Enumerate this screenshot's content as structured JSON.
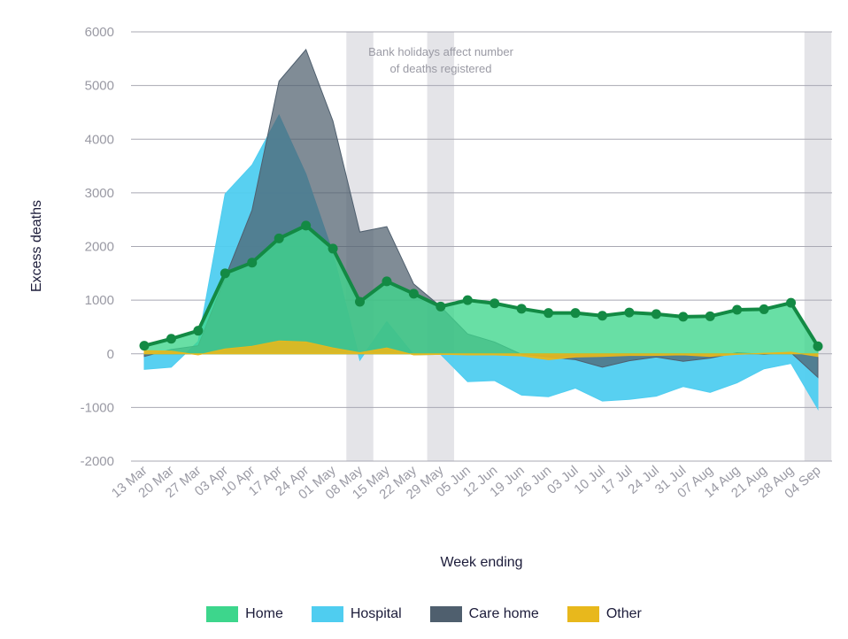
{
  "chart_data": {
    "type": "area",
    "xlabel": "Week ending",
    "ylabel": "Excess deaths",
    "ylim": [
      -2000,
      6000
    ],
    "yticks": [
      6000,
      5000,
      4000,
      3000,
      2000,
      1000,
      0,
      -1000,
      -2000
    ],
    "categories": [
      "13 Mar",
      "20 Mar",
      "27 Mar",
      "03 Apr",
      "10 Apr",
      "17 Apr",
      "24 Apr",
      "01 May",
      "08 May",
      "15 May",
      "22 May",
      "29 May",
      "05 Jun",
      "12 Jun",
      "19 Jun",
      "26 Jun",
      "03 Jul",
      "10 Jul",
      "17 Jul",
      "24 Jul",
      "31 Jul",
      "07 Aug",
      "14 Aug",
      "21 Aug",
      "28 Aug",
      "04 Sep"
    ],
    "shaded_weeks": [
      "08 May",
      "29 May",
      "04 Sep"
    ],
    "annotation": "Bank holidays affect number of deaths registered",
    "annotation_lines": [
      "Bank holidays affect number",
      "of deaths registered"
    ],
    "grid": "horizontal",
    "legend_position": "bottom",
    "series": [
      {
        "name": "Hospital",
        "color": "#4fcdf0",
        "values": [
          -290,
          -250,
          230,
          2980,
          3520,
          4450,
          3350,
          1880,
          -120,
          600,
          -20,
          -10,
          -520,
          -500,
          -770,
          -800,
          -640,
          -880,
          -850,
          -790,
          -610,
          -720,
          -540,
          -280,
          -180,
          -1030
        ]
      },
      {
        "name": "Care home",
        "color": "#4f5f6e",
        "values": [
          -50,
          80,
          150,
          1420,
          2680,
          5080,
          5670,
          4340,
          2270,
          2370,
          1300,
          880,
          370,
          220,
          -10,
          -60,
          -110,
          -250,
          -130,
          -60,
          -140,
          -80,
          20,
          -10,
          20,
          -440
        ]
      },
      {
        "name": "Home",
        "color": "#3dd68c",
        "values": [
          150,
          280,
          430,
          1500,
          1700,
          2150,
          2390,
          1960,
          970,
          1350,
          1120,
          880,
          1000,
          940,
          840,
          760,
          760,
          710,
          770,
          740,
          690,
          700,
          820,
          830,
          950,
          140
        ]
      },
      {
        "name": "Other",
        "color": "#e8b81c",
        "values": [
          60,
          50,
          -20,
          90,
          140,
          240,
          220,
          110,
          20,
          110,
          -20,
          -10,
          -20,
          -20,
          -40,
          -110,
          -60,
          -50,
          -30,
          -30,
          -20,
          -50,
          -10,
          10,
          30,
          -50
        ]
      }
    ]
  },
  "legend": {
    "home": {
      "label": "Home",
      "color": "#3dd68c"
    },
    "hospital": {
      "label": "Hospital",
      "color": "#4fcdf0"
    },
    "care_home": {
      "label": "Care home",
      "color": "#4f5f6e"
    },
    "other": {
      "label": "Other",
      "color": "#e8b81c"
    }
  }
}
